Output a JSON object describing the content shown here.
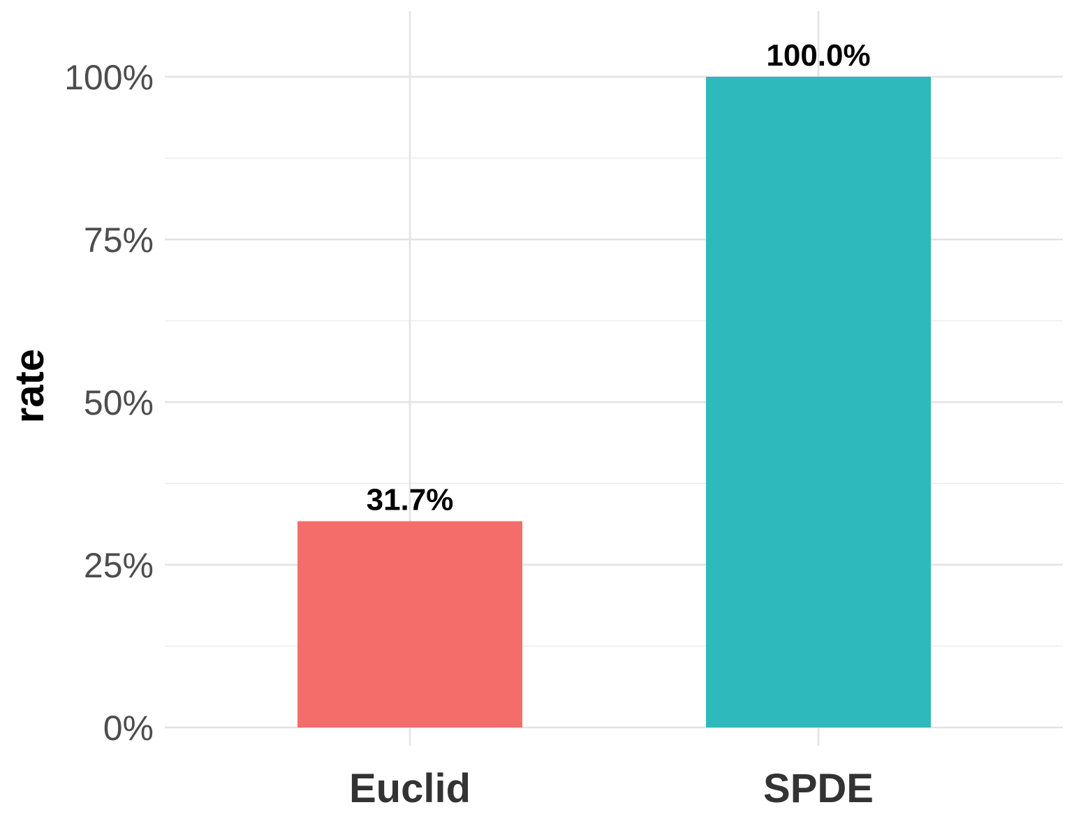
{
  "chart_data": {
    "type": "bar",
    "categories": [
      "Euclid",
      "SPDE"
    ],
    "values": [
      0.317,
      1.0
    ],
    "data_labels": [
      "31.7%",
      "100.0%"
    ],
    "colors": [
      "#F46D6A",
      "#2EB9BC"
    ],
    "xlabel": "",
    "ylabel": "rate",
    "ylim": [
      0,
      1.0
    ],
    "yticks": [
      0,
      0.25,
      0.5,
      0.75,
      1.0
    ],
    "ytick_labels": [
      "0%",
      "25%",
      "50%",
      "75%",
      "100%"
    ],
    "grid": true,
    "legend": "none"
  }
}
